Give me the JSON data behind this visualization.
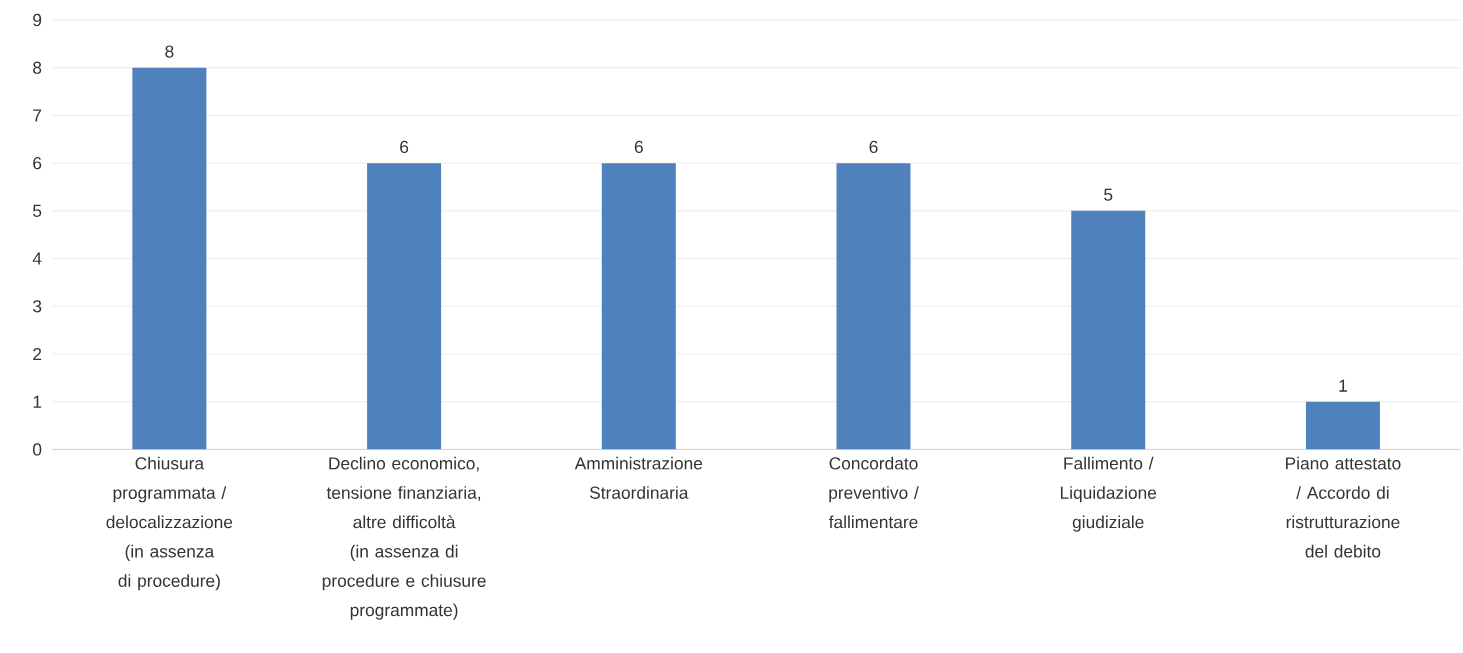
{
  "chart_data": {
    "type": "bar",
    "categories": [
      "Chiusura programmata / delocalizzazione (in assenza di procedure)",
      "Declino economico, tensione finanziaria, altre difficoltà (in assenza di procedure e chiusure programmate)",
      "Amministrazione Straordinaria",
      "Concordato preventivo / fallimentare",
      "Fallimento / Liquidazione giudiziale",
      "Piano attestato / Accordo di ristrutturazione del debito"
    ],
    "values": [
      8,
      6,
      6,
      6,
      5,
      1
    ],
    "color": "#4f81bd",
    "ylim": [
      0,
      9
    ],
    "yticks": [
      0,
      1,
      2,
      3,
      4,
      5,
      6,
      7,
      8,
      9
    ],
    "grid": "y",
    "data_labels": true
  }
}
